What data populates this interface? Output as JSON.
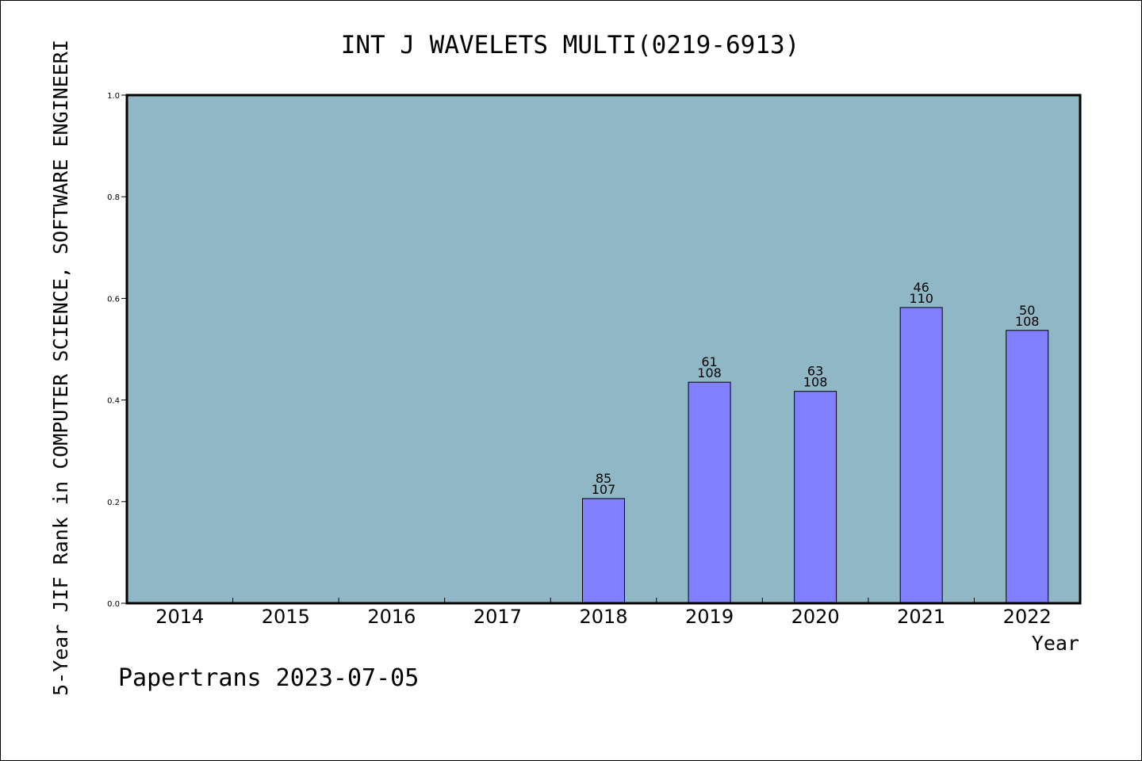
{
  "chart_data": {
    "type": "bar",
    "title": "INT J WAVELETS MULTI(0219-6913)",
    "xlabel": "Year",
    "ylabel": "5-Year JIF Rank in COMPUTER SCIENCE, SOFTWARE ENGINEERI",
    "categories": [
      "2014",
      "2015",
      "2016",
      "2017",
      "2018",
      "2019",
      "2020",
      "2021",
      "2022"
    ],
    "values": [
      null,
      null,
      null,
      null,
      0.206,
      0.435,
      0.417,
      0.582,
      0.537
    ],
    "rank_labels": [
      null,
      null,
      null,
      null,
      "85",
      "61",
      "63",
      "46",
      "50"
    ],
    "total_labels": [
      null,
      null,
      null,
      null,
      "107",
      "108",
      "108",
      "110",
      "108"
    ],
    "ylim": [
      0,
      1.0
    ],
    "yticks": [
      "0.0",
      "0.2",
      "0.4",
      "0.6",
      "0.8",
      "1.0"
    ],
    "grid": false,
    "colors": {
      "plot_background": "#8fb7c5",
      "bar_fill": "#8080ff",
      "bar_stroke": "#000000"
    },
    "credit": "Papertrans 2023-07-05"
  }
}
